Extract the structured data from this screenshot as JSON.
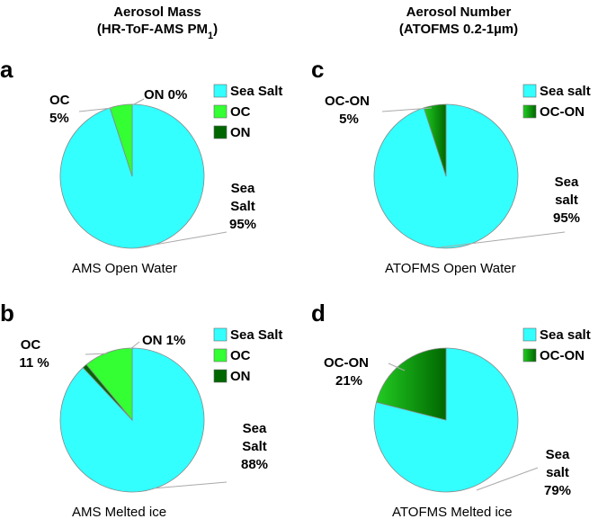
{
  "headers": {
    "left": {
      "line1": "Aerosol Mass",
      "line2_main": "(HR-ToF-AMS PM",
      "line2_sub": "1",
      "line2_end": ")"
    },
    "right": {
      "line1": "Aerosol Number",
      "line2": "(ATOFMS 0.2-1µm)"
    }
  },
  "colors": {
    "sea": "#33FFFF",
    "oc": "#33FF33",
    "on": "#006600",
    "ocon_dark": "#006600",
    "ocon_light": "#22CC22"
  },
  "chart_data": [
    {
      "panel": "a",
      "type": "pie",
      "caption": "AMS Open Water",
      "slices": [
        {
          "name": "Sea Salt",
          "value": 95,
          "label": [
            "Sea",
            "Salt",
            "95%"
          ]
        },
        {
          "name": "OC",
          "value": 5,
          "label": [
            "OC",
            "5%"
          ]
        },
        {
          "name": "ON",
          "value": 0,
          "label": [
            "ON 0%"
          ]
        }
      ],
      "legend": [
        "Sea Salt",
        "OC",
        "ON"
      ]
    },
    {
      "panel": "c",
      "type": "pie",
      "caption": "ATOFMS Open Water",
      "slices": [
        {
          "name": "Sea salt",
          "value": 95,
          "label": [
            "Sea",
            "salt",
            "95%"
          ]
        },
        {
          "name": "OC-ON",
          "value": 5,
          "label": [
            "OC-ON",
            "5%"
          ]
        }
      ],
      "legend": [
        "Sea salt",
        "OC-ON"
      ]
    },
    {
      "panel": "b",
      "type": "pie",
      "caption": "AMS Melted ice",
      "slices": [
        {
          "name": "Sea Salt",
          "value": 88,
          "label": [
            "Sea",
            "Salt",
            "88%"
          ]
        },
        {
          "name": "OC",
          "value": 11,
          "label": [
            "OC",
            "11 %"
          ]
        },
        {
          "name": "ON",
          "value": 1,
          "label": [
            "ON 1%"
          ]
        }
      ],
      "legend": [
        "Sea Salt",
        "OC",
        "ON"
      ]
    },
    {
      "panel": "d",
      "type": "pie",
      "caption": "ATOFMS Melted ice",
      "slices": [
        {
          "name": "Sea salt",
          "value": 79,
          "label": [
            "Sea",
            "salt",
            "79%"
          ]
        },
        {
          "name": "OC-ON",
          "value": 21,
          "label": [
            "OC-ON",
            "21%"
          ]
        }
      ],
      "legend": [
        "Sea salt",
        "OC-ON"
      ]
    }
  ]
}
